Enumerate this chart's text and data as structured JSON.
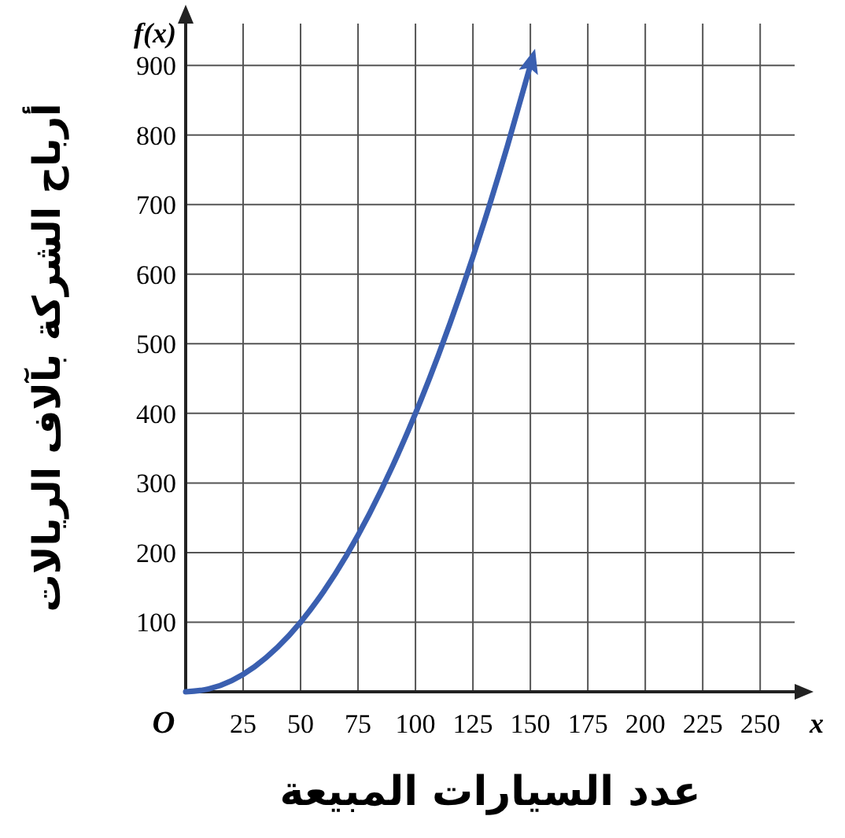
{
  "chart_data": {
    "type": "line",
    "xlabel": "عدد السيارات المبيعة",
    "ylabel": "أرباح الشركة بآلاف الريالات",
    "annotations": [
      "f(x)",
      "x",
      "O"
    ],
    "x": [
      0,
      10,
      20,
      30,
      40,
      50,
      60,
      70,
      80,
      90,
      100,
      110,
      120,
      130,
      140,
      150
    ],
    "series": [
      {
        "color": "#3a5fb0",
        "values": [
          0,
          4,
          16,
          36,
          64,
          100,
          144,
          196,
          256,
          324,
          400,
          484,
          576,
          676,
          784,
          900
        ]
      }
    ],
    "xlim": [
      0,
      265
    ],
    "ylim": [
      0,
      960
    ],
    "xticks": [
      25,
      50,
      75,
      100,
      125,
      150,
      175,
      200,
      225,
      250
    ],
    "yticks": [
      100,
      200,
      300,
      400,
      500,
      600,
      700,
      800,
      900
    ],
    "grid": true,
    "marker": "none",
    "line_style": "solid"
  }
}
